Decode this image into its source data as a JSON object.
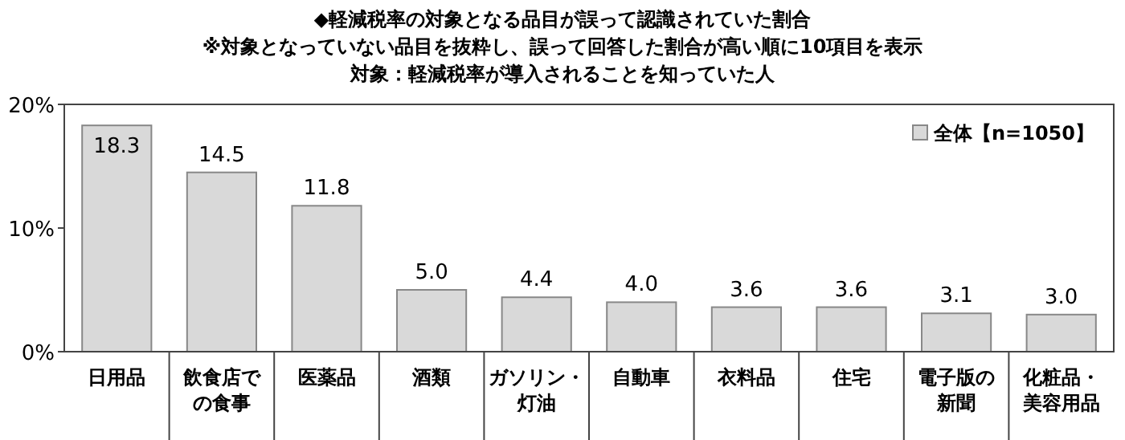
{
  "chart_data": {
    "type": "bar",
    "title": "◆軽減税率の対象となる品目が誤って認識されていた割合",
    "subtitle": "※対象となっていない品目を抜粋し、誤って回答した割合が高い順に10項目を表示",
    "annotations": [
      "対象：軽減税率が導入されることを知っていた人"
    ],
    "categories": [
      "日用品",
      "飲食店での食事",
      "医薬品",
      "酒類",
      "ガソリン・灯油",
      "自動車",
      "衣料品",
      "住宅",
      "電子版の新聞",
      "化粧品・美容用品"
    ],
    "series": [
      {
        "name": "全体【n=1050】",
        "color": "#d9d9d9",
        "values": [
          18.3,
          14.5,
          11.8,
          5.0,
          4.4,
          4.0,
          3.6,
          3.6,
          3.1,
          3.0
        ]
      }
    ],
    "ylim": [
      0,
      20
    ],
    "yticks": [
      {
        "value": 0,
        "label": "0%"
      },
      {
        "value": 10,
        "label": "10%"
      },
      {
        "value": 20,
        "label": "20%"
      }
    ],
    "value_labels": [
      "18.3",
      "14.5",
      "11.8",
      "5.0",
      "4.4",
      "4.0",
      "3.6",
      "3.6",
      "3.1",
      "3.0"
    ],
    "legend": "top right",
    "grid": false
  }
}
